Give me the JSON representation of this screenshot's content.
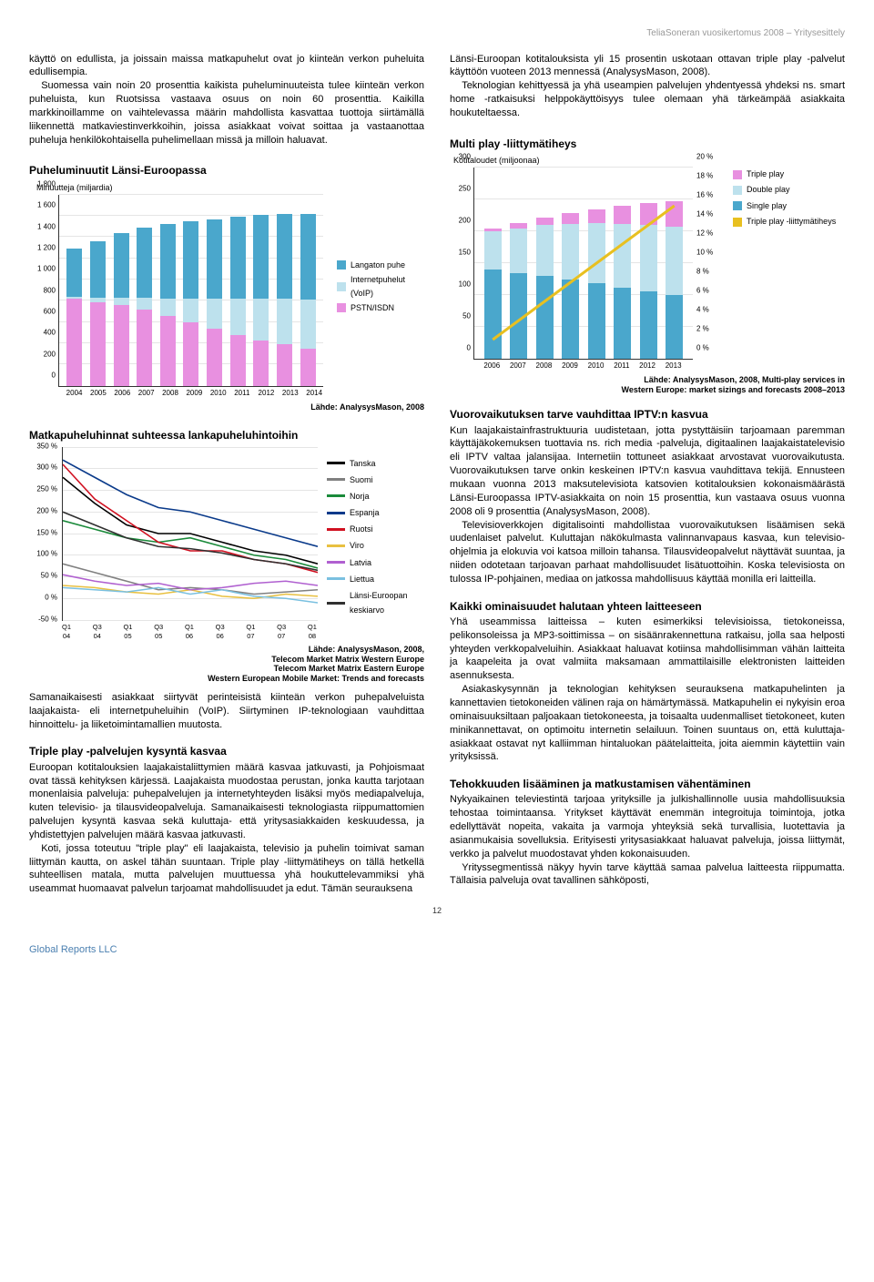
{
  "header": "TeliaSoneran vuosikertomus 2008 – Yritysesittely",
  "left": {
    "para1": "käyttö on edullista, ja joissain maissa matkapuhelut ovat jo kiinteän verkon puheluita edullisempia.",
    "para1b": "Suomessa vain noin 20 prosenttia kaikista puheluminuuteista tulee kiinteän verkon puheluista, kun Ruotsissa vastaava osuus on noin 60 prosenttia. Kaikilla markkinoillamme on vaihtelevassa määrin mahdollista kasvattaa tuottoja siirtämällä liikennettä matkaviestinverkkoihin, joissa asiakkaat voivat soittaa ja vastaanottaa puheluja henkilökohtaisella puhelimellaan missä ja milloin haluavat.",
    "chart1": {
      "title": "Puheluminuutit Länsi-Euroopassa",
      "subtitle": "Minuutteja (miljardia)",
      "ymax": 1800,
      "ystep": 200,
      "yticks": [
        "0",
        "200",
        "400",
        "600",
        "800",
        "1 000",
        "1 200",
        "1 400",
        "1 600",
        "1 800"
      ],
      "years": [
        "2004",
        "2005",
        "2006",
        "2007",
        "2008",
        "2009",
        "2010",
        "2011",
        "2012",
        "2013",
        "2014"
      ],
      "colors": {
        "pstn": "#e890e0",
        "voip": "#bde1ed",
        "wireless": "#4aa7cc"
      },
      "series_pstn": [
        820,
        790,
        760,
        720,
        660,
        600,
        540,
        480,
        430,
        390,
        350
      ],
      "series_voip": [
        20,
        40,
        70,
        110,
        160,
        220,
        280,
        340,
        390,
        430,
        460
      ],
      "series_wireless": [
        450,
        530,
        610,
        660,
        700,
        730,
        750,
        770,
        790,
        800,
        810
      ],
      "legend": [
        {
          "label": "Langaton puhe",
          "color": "#4aa7cc"
        },
        {
          "label": "Internetpuhelut (VoIP)",
          "color": "#bde1ed"
        },
        {
          "label": "PSTN/ISDN",
          "color": "#e890e0"
        }
      ],
      "source": "Lähde: AnalysysMason, 2008"
    },
    "chart2": {
      "title": "Matkapuheluhinnat suhteessa lankapuheluhintoihin",
      "ymin": -50,
      "ymax": 350,
      "ystep": 50,
      "yticks": [
        "-50 %",
        "0 %",
        "50 %",
        "100 %",
        "150 %",
        "200 %",
        "250 %",
        "300 %",
        "350 %"
      ],
      "xlabels": [
        "Q1 04",
        "Q3 04",
        "Q1 05",
        "Q3 05",
        "Q1 06",
        "Q3 06",
        "Q1 07",
        "Q3 07",
        "Q1 08"
      ],
      "lines": [
        {
          "label": "Tanska",
          "color": "#000000",
          "vals": [
            280,
            220,
            170,
            150,
            150,
            130,
            110,
            100,
            80
          ]
        },
        {
          "label": "Suomi",
          "color": "#808080",
          "vals": [
            80,
            60,
            40,
            20,
            25,
            20,
            10,
            15,
            20
          ]
        },
        {
          "label": "Norja",
          "color": "#1a8a3a",
          "vals": [
            180,
            160,
            140,
            130,
            140,
            120,
            100,
            90,
            70
          ]
        },
        {
          "label": "Espanja",
          "color": "#0a3a8a",
          "vals": [
            320,
            280,
            240,
            210,
            200,
            180,
            160,
            140,
            120
          ]
        },
        {
          "label": "Ruotsi",
          "color": "#d01020",
          "vals": [
            310,
            230,
            180,
            130,
            110,
            110,
            90,
            80,
            60
          ]
        },
        {
          "label": "Viro",
          "color": "#e8c040",
          "vals": [
            30,
            25,
            15,
            10,
            20,
            5,
            0,
            10,
            5
          ]
        },
        {
          "label": "Latvia",
          "color": "#b060d0",
          "vals": [
            55,
            40,
            30,
            35,
            20,
            25,
            35,
            40,
            30
          ]
        },
        {
          "label": "Liettua",
          "color": "#7ac0e0",
          "vals": [
            25,
            20,
            15,
            25,
            10,
            20,
            5,
            0,
            -10
          ]
        },
        {
          "label": "Länsi-Euroopan keskiarvo",
          "color": "#303030",
          "vals": [
            200,
            170,
            140,
            120,
            115,
            105,
            90,
            80,
            65
          ]
        }
      ],
      "source1": "Lähde: AnalysysMason, 2008,",
      "source2": "Telecom Market Matrix Western Europe",
      "source3": "Telecom Market Matrix Eastern Europe",
      "source4": "Western European Mobile Market: Trends and forecasts"
    },
    "para2": "Samanaikaisesti asiakkaat siirtyvät perinteisistä kiinteän verkon puhepalveluista laajakaista- eli internetpuheluihin (VoIP). Siirtyminen IP-teknologiaan vauhdittaa hinnoittelu- ja liiketoimintamallien muutosta.",
    "h3a": "Triple play -palvelujen kysyntä kasvaa",
    "para3": "Euroopan kotitalouksien laajakaistaliittymien määrä kasvaa jatkuvasti, ja Pohjoismaat ovat tässä kehityksen kärjessä. Laajakaista muodostaa perustan, jonka kautta tarjotaan monenlaisia palveluja: puhepalvelujen ja internetyhteyden lisäksi myös mediapalveluja, kuten televisio- ja tilausvideopalveluja. Samanaikaisesti teknologiasta riippumattomien palvelujen kysyntä kasvaa sekä kuluttaja- että yritysasiakkaiden keskuudessa, ja yhdistettyjen palvelujen määrä kasvaa jatkuvasti.",
    "para3b": "Koti, jossa toteutuu \"triple play\" eli laajakaista, televisio ja puhelin toimivat saman liittymän kautta, on askel tähän suuntaan. Triple play -liittymätiheys on tällä hetkellä suhteellisen matala, mutta palvelujen muuttuessa yhä houkuttelevammiksi yhä useammat huomaavat palvelun tarjoamat mahdollisuudet ja edut. Tämän seurauksena"
  },
  "right": {
    "para1": "Länsi-Euroopan kotitalouksista yli 15 prosentin uskotaan ottavan triple play -palvelut käyttöön vuoteen 2013 mennessä (AnalysysMason, 2008).",
    "para1b": "Teknologian kehittyessä ja yhä useampien palvelujen yhdentyessä yhdeksi ns. smart home -ratkaisuksi helppokäyttöisyys tulee olemaan yhä tärkeämpää asiakkaita houkuteltaessa.",
    "chart3": {
      "title": "Multi play -liittymätiheys",
      "subtitle": "Kotitaloudet (miljoonaa)",
      "ymax": 300,
      "ystep": 50,
      "yticks_l": [
        "0",
        "50",
        "100",
        "150",
        "200",
        "250",
        "300"
      ],
      "ymax_r": 20,
      "ystep_r": 2,
      "yticks_r": [
        "0 %",
        "2 %",
        "4 %",
        "6 %",
        "8 %",
        "10 %",
        "12 %",
        "14 %",
        "16 %",
        "18 %",
        "20 %"
      ],
      "years": [
        "2006",
        "2007",
        "2008",
        "2009",
        "2010",
        "2011",
        "2012",
        "2013"
      ],
      "colors": {
        "single": "#4aa7cc",
        "double": "#bde1ed",
        "triple": "#e890e0",
        "line": "#e8c020"
      },
      "series_single": [
        140,
        135,
        130,
        124,
        118,
        112,
        106,
        100
      ],
      "series_double": [
        60,
        70,
        80,
        88,
        95,
        100,
        104,
        107
      ],
      "series_triple": [
        5,
        8,
        12,
        17,
        22,
        28,
        34,
        40
      ],
      "line_pct": [
        2,
        4,
        6,
        8,
        10,
        12,
        14,
        16
      ],
      "legend": [
        {
          "label": "Triple play",
          "color": "#e890e0"
        },
        {
          "label": "Double play",
          "color": "#bde1ed"
        },
        {
          "label": "Single play",
          "color": "#4aa7cc"
        },
        {
          "label": "Triple play -liittymätiheys",
          "color": "#e8c020"
        }
      ],
      "source1": "Lähde: AnalysysMason, 2008, Multi-play services in",
      "source2": "Western Europe: market sizings and forecasts 2008–2013"
    },
    "h3a": "Vuorovaikutuksen tarve vauhdittaa IPTV:n kasvua",
    "para2": "Kun laajakaistainfrastruktuuria uudistetaan, jotta pystyttäisiin tarjoamaan paremman käyttäjäkokemuksen tuottavia ns. rich media -palveluja, digitaalinen laajakaistatelevisio eli IPTV valtaa jalansijaa. Internetiin tottuneet asiakkaat arvostavat vuorovaikutusta. Vuorovaikutuksen tarve onkin keskeinen IPTV:n kasvua vauhdittava tekijä. Ennusteen mukaan vuonna 2013 maksutelevisiota katsovien kotitalouksien kokonaismäärästä Länsi-Euroopassa IPTV-asiakkaita on noin 15 prosenttia, kun vastaava osuus vuonna 2008 oli 9 prosenttia (AnalysysMason, 2008).",
    "para2b": "Televisioverkkojen digitalisointi mahdollistaa vuorovaikutuksen lisäämisen sekä uudenlaiset palvelut. Kuluttajan näkökulmasta valinnanvapaus kasvaa, kun televisio-ohjelmia ja elokuvia voi katsoa milloin tahansa. Tilausvideopalvelut näyttävät suuntaa, ja niiden odotetaan tarjoavan parhaat mahdollisuudet lisätuottoihin. Koska televisiosta on tulossa IP-pohjainen, mediaa on jatkossa mahdollisuus käyttää monilla eri laitteilla.",
    "h3b": "Kaikki ominaisuudet halutaan yhteen laitteeseen",
    "para3": "Yhä useammissa laitteissa – kuten esimerkiksi televisioissa, tietokoneissa, pelikonsoleissa ja MP3-soittimissa – on sisäänrakennettuna ratkaisu, jolla saa helposti yhteyden verkkopalveluihin. Asiakkaat haluavat kotiinsa mahdollisimman vähän laitteita ja kaapeleita ja ovat valmiita maksamaan ammattilaisille elektronisten laitteiden asennuksesta.",
    "para3b": "Asiakaskysynnän ja teknologian kehityksen seurauksena matkapuhelinten ja kannettavien tietokoneiden välinen raja on hämärtymässä. Matkapuhelin ei nykyisin eroa ominaisuuksiltaan paljoakaan tietokoneesta, ja toisaalta uudenmalliset tietokoneet, kuten minikannettavat, on optimoitu internetin selailuun. Toinen suuntaus on, että kuluttaja-asiakkaat ostavat nyt kalliimman hintaluokan päätelaitteita, joita aiemmin käytettiin vain yrityksissä.",
    "h3c": "Tehokkuuden lisääminen ja matkustamisen vähentäminen",
    "para4": "Nykyaikainen televiestintä tarjoaa yrityksille ja julkishallinnolle uusia mahdollisuuksia tehostaa toimintaansa. Yritykset käyttävät enemmän integroituja toimintoja, jotka edellyttävät nopeita, vakaita ja varmoja yhteyksiä sekä turvallisia, luotettavia ja asianmukaisia sovelluksia. Erityisesti yritysasiakkaat haluavat palveluja, joissa liittymät, verkko ja palvelut muodostavat yhden kokonaisuuden.",
    "para4b": "Yrityssegmentissä näkyy hyvin tarve käyttää samaa palvelua laitteesta riippumatta. Tällaisia palveluja ovat tavallinen sähköposti,"
  },
  "footer": "Global Reports LLC",
  "pagenum": "12"
}
